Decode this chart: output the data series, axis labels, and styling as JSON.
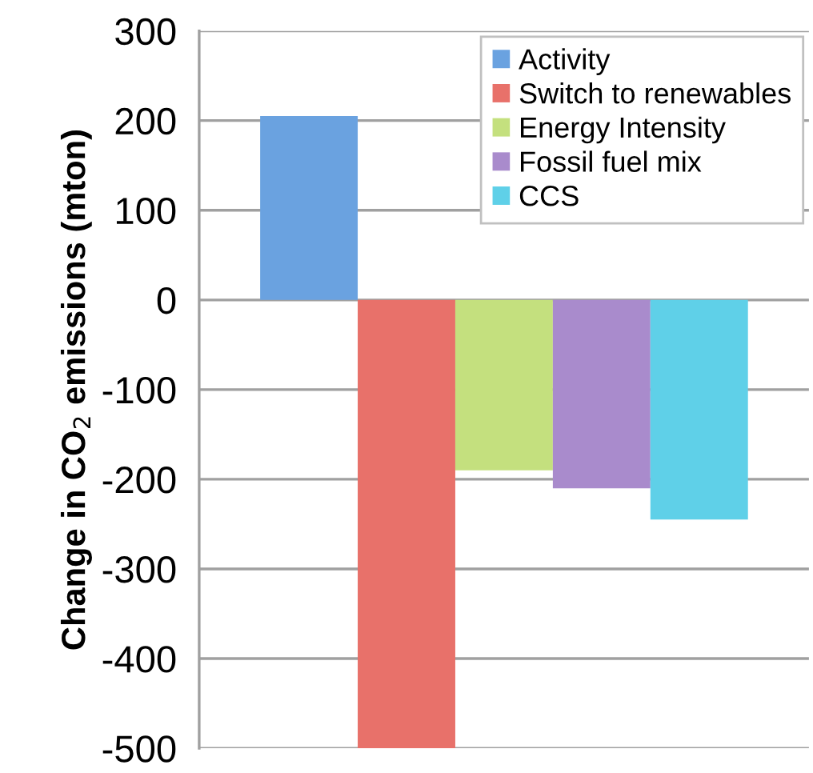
{
  "chart_data": {
    "type": "bar",
    "ylabel": "Change in CO$_{2}$ emissions (mton)",
    "categories": [
      null
    ],
    "series": [
      {
        "name": "Activity",
        "color": "#6aa2e0",
        "values": [
          205
        ]
      },
      {
        "name": "Switch to renewables",
        "color": "#e8716a",
        "values": [
          -500
        ]
      },
      {
        "name": "Energy Intensity",
        "color": "#c4e07e",
        "values": [
          -190
        ]
      },
      {
        "name": "Fossil fuel mix",
        "color": "#a98bcc",
        "values": [
          -210
        ]
      },
      {
        "name": "CCS",
        "color": "#5fd0e8",
        "values": [
          -245
        ]
      }
    ],
    "ylim": [
      -500,
      300
    ],
    "yticks": [
      -500,
      -400,
      -300,
      -200,
      -100,
      0,
      100,
      200,
      300
    ],
    "grid": "y",
    "legend": "top right"
  }
}
